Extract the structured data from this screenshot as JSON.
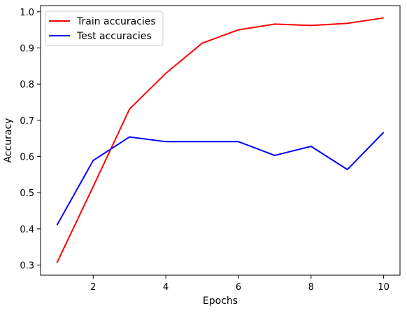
{
  "chart_data": {
    "type": "line",
    "x": [
      1,
      2,
      3,
      4,
      5,
      6,
      7,
      8,
      9,
      10
    ],
    "series": [
      {
        "name": "Train accuracies",
        "color": "#ff0000",
        "values": [
          0.306,
          0.517,
          0.731,
          0.83,
          0.913,
          0.95,
          0.966,
          0.962,
          0.968,
          0.983
        ]
      },
      {
        "name": "Test accuracies",
        "color": "#0000ff",
        "values": [
          0.41,
          0.589,
          0.654,
          0.641,
          0.641,
          0.641,
          0.603,
          0.628,
          0.564,
          0.667
        ]
      }
    ],
    "xlabel": "Epochs",
    "ylabel": "Accuracy",
    "xlim": [
      0.55,
      10.45
    ],
    "ylim": [
      0.272,
      1.017
    ],
    "xticks": [
      2,
      4,
      6,
      8,
      10
    ],
    "yticks": [
      0.3,
      0.4,
      0.5,
      0.6,
      0.7,
      0.8,
      0.9,
      1.0
    ],
    "grid": false,
    "legend_position": "top-left"
  }
}
